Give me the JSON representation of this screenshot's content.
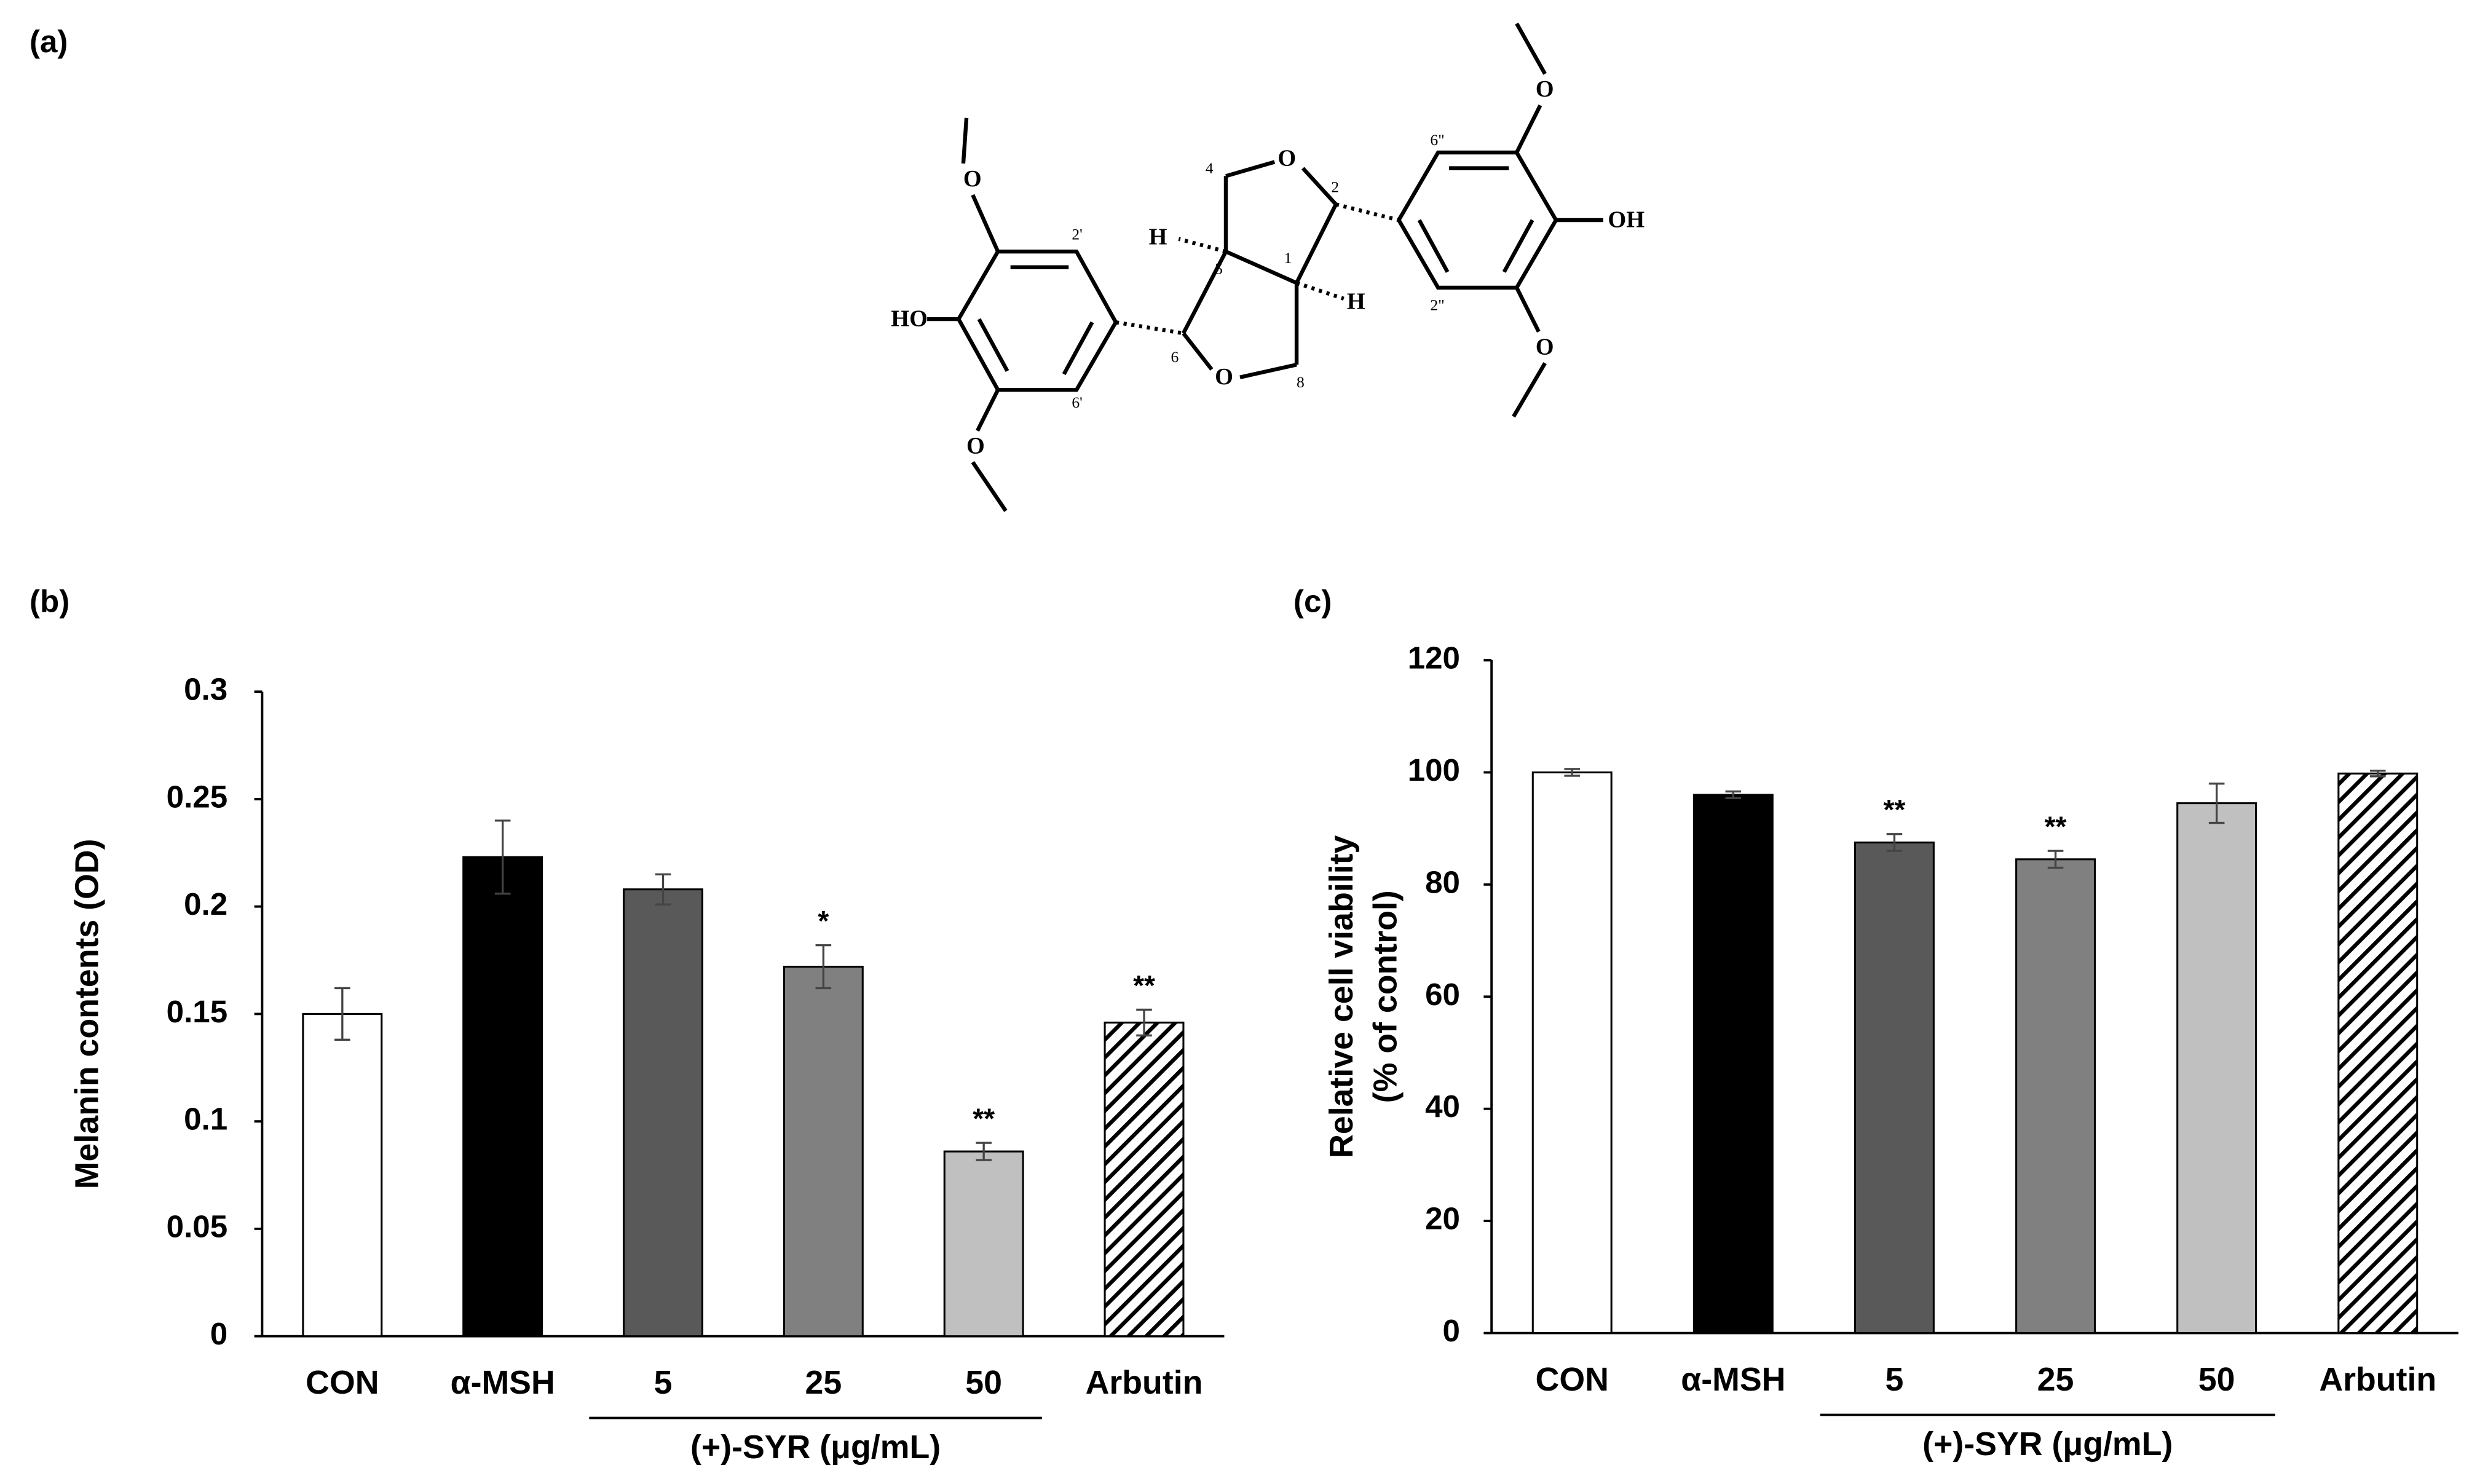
{
  "panels": [
    "(a)",
    "(b)",
    "(c)"
  ],
  "structure": {
    "labels": [
      "HO",
      "OH",
      "H",
      "H",
      "O",
      "O",
      "O",
      "O",
      "O",
      "O",
      "2'",
      "6'",
      "2\"",
      "6\"",
      "1",
      "2",
      "4",
      "5",
      "6",
      "8"
    ]
  },
  "chart_data": [
    {
      "type": "bar",
      "y_label": [
        "Melanin contents (OD)"
      ],
      "categories": [
        "CON",
        "α-MSH",
        "5",
        "25",
        "50",
        "Arbutin"
      ],
      "group_label": "(+)-SYR (μg/mL)",
      "values": [
        0.15,
        0.223,
        0.208,
        0.172,
        0.086,
        0.146
      ],
      "errors": [
        0.012,
        0.017,
        0.007,
        0.01,
        0.004,
        0.006
      ],
      "significance": [
        null,
        null,
        null,
        "*",
        "**",
        "**"
      ],
      "fills": [
        "#ffffff",
        "#000000",
        "#595959",
        "#808080",
        "#c0c0c0",
        "hatch"
      ],
      "ylim": [
        0,
        0.3
      ],
      "yticks": [
        0,
        0.05,
        0.1,
        0.15,
        0.2,
        0.25,
        0.3
      ]
    },
    {
      "type": "bar",
      "y_label": [
        "Relative cell viability",
        "(% of control)"
      ],
      "categories": [
        "CON",
        "α-MSH",
        "5",
        "25",
        "50",
        "Arbutin"
      ],
      "group_label": "(+)-SYR (μg/mL)",
      "values": [
        100,
        96,
        87.5,
        84.5,
        94.5,
        99.8
      ],
      "errors": [
        0.6,
        0.6,
        1.5,
        1.5,
        3.5,
        0.5
      ],
      "significance": [
        null,
        null,
        "**",
        "**",
        null,
        null
      ],
      "fills": [
        "#ffffff",
        "#000000",
        "#595959",
        "#808080",
        "#c0c0c0",
        "hatch"
      ],
      "ylim": [
        0,
        120
      ],
      "yticks": [
        0,
        20,
        40,
        60,
        80,
        100,
        120
      ]
    }
  ]
}
